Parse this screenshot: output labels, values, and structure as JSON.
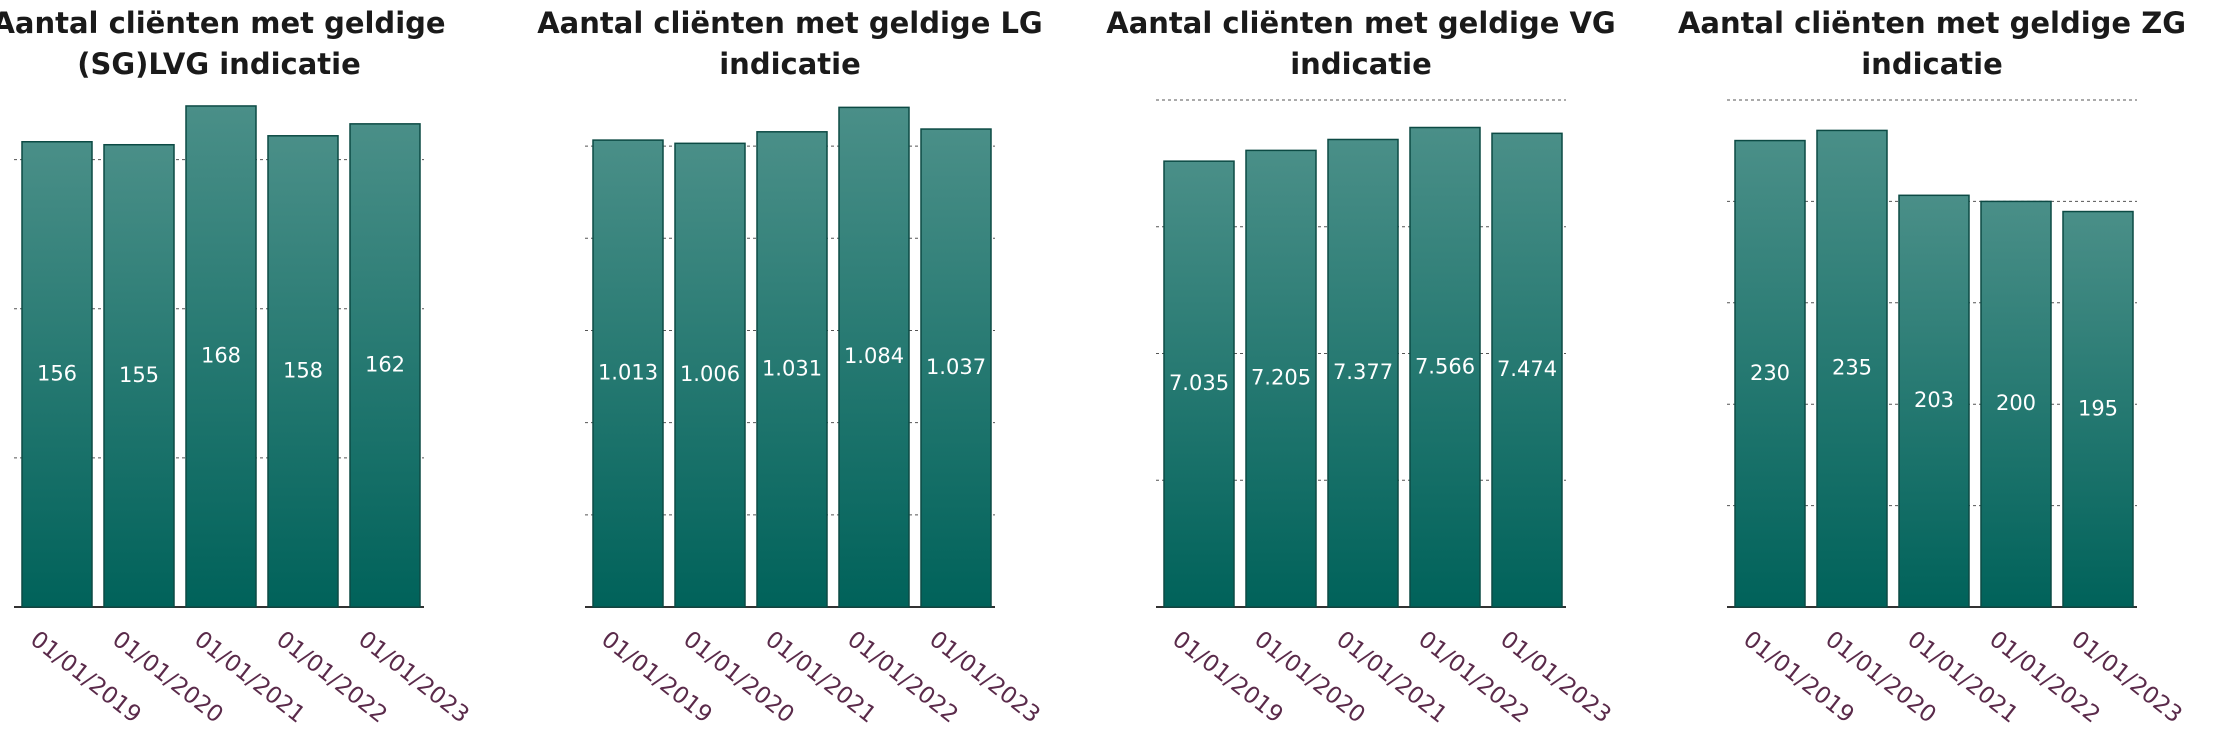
{
  "chart_data": [
    {
      "type": "bar",
      "title": [
        "Aantal cliënten met geldige",
        "(SG)LVG indicatie"
      ],
      "categories": [
        "01/01/2019",
        "01/01/2020",
        "01/01/2021",
        "01/01/2022",
        "01/01/2023"
      ],
      "values": [
        156,
        155,
        168,
        158,
        162
      ],
      "value_labels": [
        "156",
        "155",
        "168",
        "158",
        "162"
      ],
      "ylim": [
        0,
        170
      ],
      "yticks": [
        0,
        50,
        100,
        150
      ],
      "grid": true,
      "color": [
        "#4a8f88",
        "#00625a"
      ]
    },
    {
      "type": "bar",
      "title": [
        "Aantal cliënten met geldige  LG",
        "indicatie"
      ],
      "categories": [
        "01/01/2019",
        "01/01/2020",
        "01/01/2021",
        "01/01/2022",
        "01/01/2023"
      ],
      "values": [
        1013,
        1006,
        1031,
        1084,
        1037
      ],
      "value_labels": [
        "1.013",
        "1.006",
        "1.031",
        "1.084",
        "1.037"
      ],
      "ylim": [
        0,
        1100
      ],
      "yticks": [
        0,
        200,
        400,
        600,
        800,
        1000
      ],
      "grid": true,
      "color": [
        "#4a8f88",
        "#00625a"
      ]
    },
    {
      "type": "bar",
      "title": [
        "Aantal cliënten met geldige VG",
        "indicatie"
      ],
      "categories": [
        "01/01/2019",
        "01/01/2020",
        "01/01/2021",
        "01/01/2022",
        "01/01/2023"
      ],
      "values": [
        7035,
        7205,
        7377,
        7566,
        7474
      ],
      "value_labels": [
        "7.035",
        "7.205",
        "7.377",
        "7.566",
        "7.474"
      ],
      "ylim": [
        0,
        8000
      ],
      "yticks": [
        0,
        2000,
        4000,
        6000,
        8000
      ],
      "grid": true,
      "color": [
        "#4a8f88",
        "#00625a"
      ]
    },
    {
      "type": "bar",
      "title": [
        "Aantal cliënten met geldige ZG",
        "indicatie"
      ],
      "categories": [
        "01/01/2019",
        "01/01/2020",
        "01/01/2021",
        "01/01/2022",
        "01/01/2023"
      ],
      "values": [
        230,
        235,
        203,
        200,
        195
      ],
      "value_labels": [
        "230",
        "235",
        "203",
        "200",
        "195"
      ],
      "ylim": [
        0,
        250
      ],
      "yticks": [
        0,
        50,
        100,
        150,
        200,
        250
      ],
      "grid": true,
      "color": [
        "#4a8f88",
        "#00625a"
      ]
    }
  ]
}
